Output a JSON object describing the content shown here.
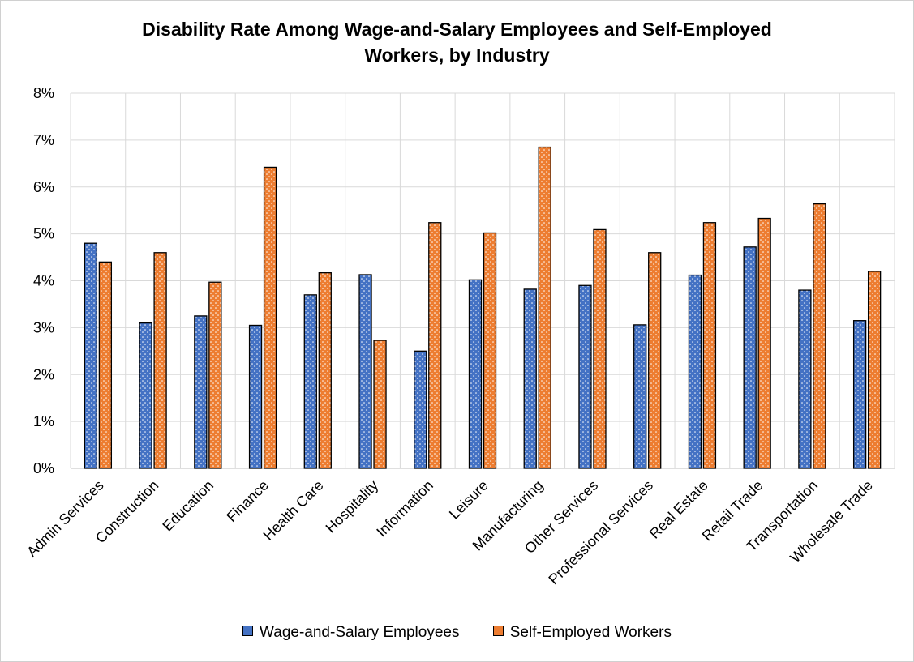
{
  "chart_data": {
    "type": "bar",
    "title_line1": "Disability Rate Among Wage-and-Salary Employees and Self-Employed",
    "title_line2": "Workers, by Industry",
    "categories": [
      "Admin Services",
      "Construction",
      "Education",
      "Finance",
      "Health Care",
      "Hospitality",
      "Information",
      "Leisure",
      "Manufacturing",
      "Other Services",
      "Professional Services",
      "Real Estate",
      "Retail Trade",
      "Transportation",
      "Wholesale Trade"
    ],
    "series": [
      {
        "name": "Wage-and-Salary Employees",
        "color": "#4472C4",
        "values": [
          4.8,
          3.1,
          3.25,
          3.05,
          3.7,
          4.13,
          2.5,
          4.02,
          3.82,
          3.9,
          3.06,
          4.12,
          4.72,
          3.8,
          3.15
        ]
      },
      {
        "name": "Self-Employed Workers",
        "color": "#ED7D31",
        "values": [
          4.4,
          4.6,
          3.97,
          6.42,
          4.17,
          2.73,
          5.24,
          5.02,
          6.85,
          5.09,
          4.6,
          5.24,
          5.33,
          5.64,
          4.2
        ]
      }
    ],
    "ylim": [
      0,
      8
    ],
    "yticks": [
      "0%",
      "1%",
      "2%",
      "3%",
      "4%",
      "5%",
      "6%",
      "7%",
      "8%"
    ],
    "grid": true,
    "legend_position": "bottom"
  }
}
